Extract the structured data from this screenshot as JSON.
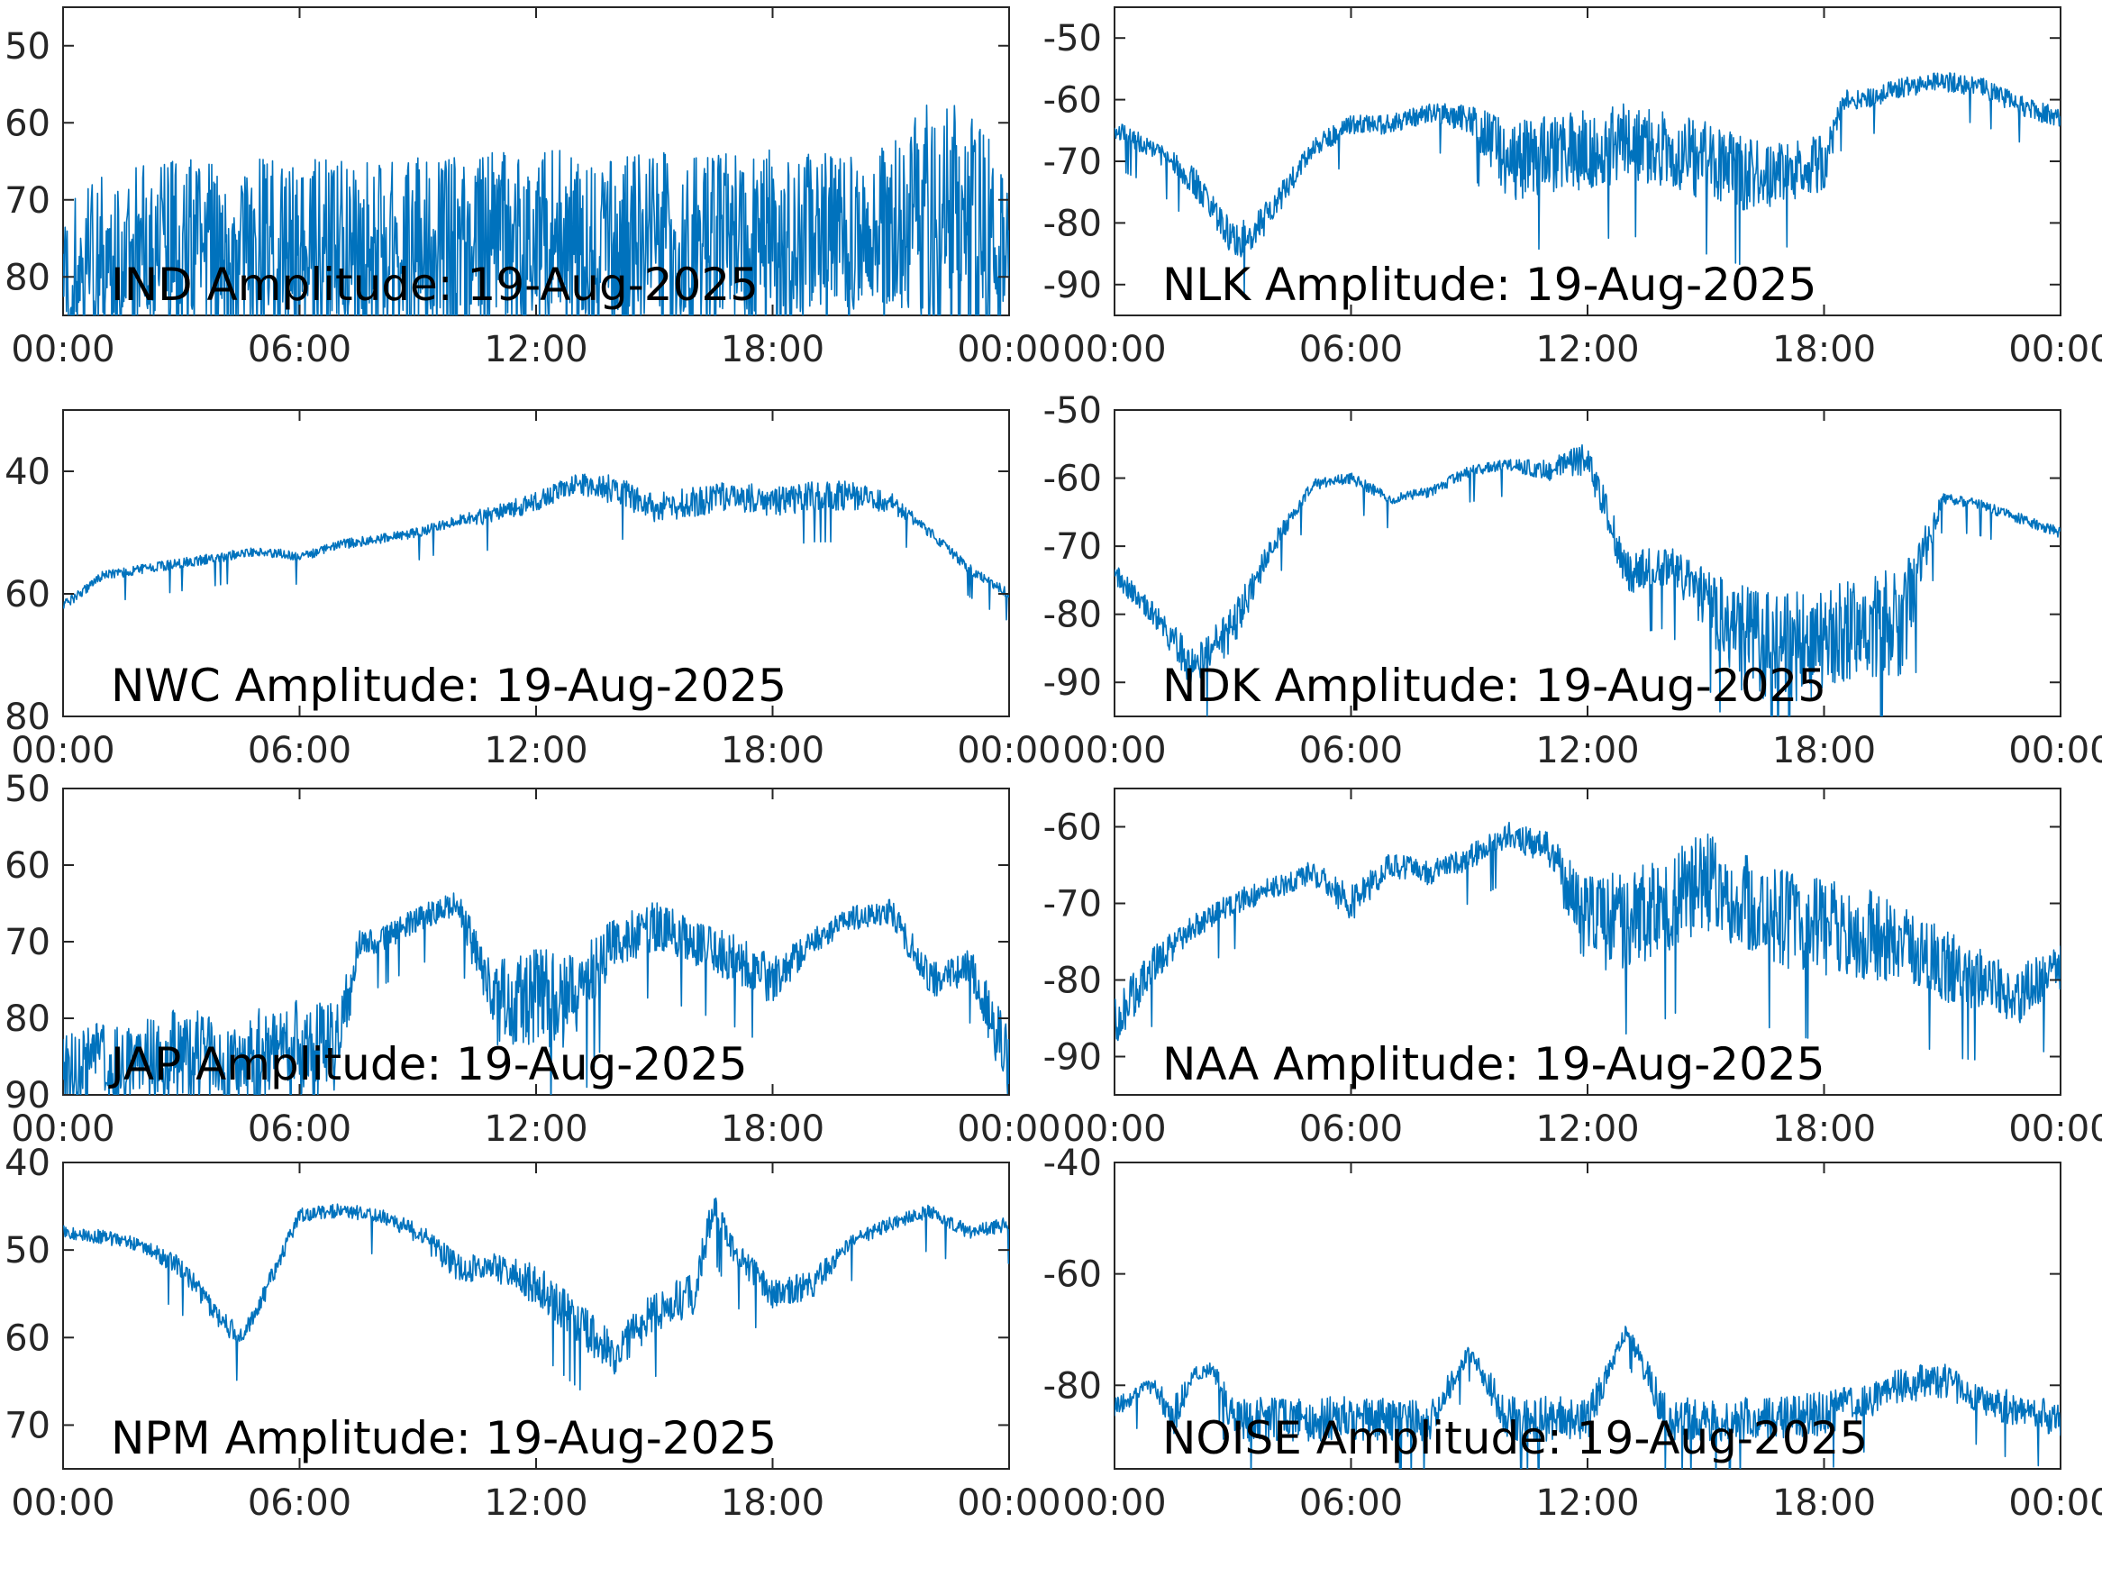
{
  "chart_data": [
    {
      "type": "line",
      "title": "",
      "annotation": "IND Amplitude: 19-Aug-2025",
      "xlabel": "",
      "ylabel": "",
      "xlim": [
        "00:00",
        "24:00"
      ],
      "ylim": [
        -85,
        -45
      ],
      "yticks": [
        -80,
        -70,
        -60,
        -50
      ],
      "ytick_labels": [
        "80",
        "70",
        "60",
        "50"
      ],
      "xtick_labels": [
        "00:00",
        "06:00",
        "12:00",
        "18:00",
        "00:00"
      ],
      "color": "#0072BD",
      "series": [
        {
          "x": [
            "00:00",
            "01:00",
            "02:00",
            "03:00",
            "04:00",
            "05:00",
            "06:00",
            "07:00",
            "08:00",
            "09:00",
            "10:00",
            "11:00",
            "12:00",
            "13:00",
            "14:00",
            "15:00",
            "16:00",
            "17:00",
            "18:00",
            "19:00",
            "20:00",
            "21:00",
            "22:00",
            "23:00",
            "24:00"
          ],
          "y": [
            -80,
            -78,
            -77,
            -76.5,
            -76.5,
            -76.5,
            -76.5,
            -76.5,
            -76.5,
            -76.5,
            -76,
            -75.5,
            -75.5,
            -75.5,
            -75.5,
            -75.5,
            -76,
            -76,
            -75.5,
            -75,
            -74,
            -73,
            -72,
            -74,
            -76
          ],
          "spread": [
            12,
            14,
            15,
            15,
            15,
            15,
            15,
            15,
            15,
            15,
            15,
            15,
            15,
            15,
            15,
            15,
            15,
            15,
            15,
            14,
            13,
            13,
            20,
            20,
            14
          ]
        }
      ]
    },
    {
      "type": "line",
      "title": "",
      "annotation": "NLK Amplitude: 19-Aug-2025",
      "xlabel": "",
      "ylabel": "",
      "xlim": [
        "00:00",
        "24:00"
      ],
      "ylim": [
        -95,
        -45
      ],
      "yticks": [
        -90,
        -80,
        -70,
        -60,
        -50
      ],
      "ytick_labels": [
        "-90",
        "-80",
        "-70",
        "-60",
        "-50"
      ],
      "xtick_labels": [
        "00:00",
        "06:00",
        "12:00",
        "18:00",
        "00:00"
      ],
      "color": "#0072BD",
      "series": [
        {
          "x": [
            "00:00",
            "01:00",
            "02:00",
            "02:30",
            "03:00",
            "03:30",
            "04:00",
            "05:00",
            "06:00",
            "07:00",
            "08:00",
            "09:00",
            "10:00",
            "11:00",
            "12:00",
            "13:00",
            "14:00",
            "15:00",
            "16:00",
            "17:00",
            "18:00",
            "18:30",
            "19:00",
            "20:00",
            "21:00",
            "22:00",
            "23:00",
            "24:00"
          ],
          "y": [
            -65,
            -68,
            -73,
            -78,
            -83,
            -82,
            -78,
            -68,
            -64,
            -64,
            -62,
            -63,
            -70,
            -69,
            -68,
            -67,
            -68,
            -70,
            -72,
            -72,
            -70,
            -60,
            -60,
            -58,
            -57,
            -58,
            -61,
            -63
          ],
          "spread": [
            2,
            2,
            3,
            3,
            4,
            4,
            3,
            2,
            2,
            2,
            2,
            3,
            8,
            8,
            8,
            8,
            8,
            8,
            8,
            6,
            6,
            2,
            2,
            2,
            2,
            2,
            2,
            2
          ]
        }
      ]
    },
    {
      "type": "line",
      "title": "",
      "annotation": "NWC Amplitude: 19-Aug-2025",
      "xlabel": "",
      "ylabel": "",
      "xlim": [
        "00:00",
        "24:00"
      ],
      "ylim": [
        -80,
        -30
      ],
      "yticks": [
        -80,
        -60,
        -40
      ],
      "ytick_labels": [
        "80",
        "60",
        "40"
      ],
      "xtick_labels": [
        "00:00",
        "06:00",
        "12:00",
        "18:00",
        "00:00"
      ],
      "color": "#0072BD",
      "series": [
        {
          "x": [
            "00:00",
            "01:00",
            "02:00",
            "03:00",
            "04:00",
            "05:00",
            "06:00",
            "07:00",
            "08:00",
            "09:00",
            "10:00",
            "11:00",
            "12:00",
            "13:00",
            "14:00",
            "15:00",
            "16:00",
            "17:00",
            "18:00",
            "19:00",
            "20:00",
            "21:00",
            "22:00",
            "23:00",
            "24:00"
          ],
          "y": [
            -62,
            -57,
            -56,
            -55,
            -54,
            -53,
            -54,
            -52,
            -51,
            -50,
            -48,
            -47,
            -45,
            -42,
            -43,
            -46,
            -45,
            -44,
            -45,
            -44,
            -44,
            -45,
            -50,
            -56,
            -60
          ],
          "spread": [
            1,
            1,
            1,
            1,
            1,
            1,
            1,
            1,
            1,
            1,
            1,
            2,
            2,
            2,
            3,
            3,
            3,
            3,
            3,
            3,
            3,
            2,
            1,
            1,
            1
          ]
        }
      ]
    },
    {
      "type": "line",
      "title": "",
      "annotation": "NDK Amplitude: 19-Aug-2025",
      "xlabel": "",
      "ylabel": "",
      "xlim": [
        "00:00",
        "24:00"
      ],
      "ylim": [
        -95,
        -50
      ],
      "yticks": [
        -90,
        -80,
        -70,
        -60,
        -50
      ],
      "ytick_labels": [
        "-90",
        "-80",
        "-70",
        "-60",
        "-50"
      ],
      "xtick_labels": [
        "00:00",
        "06:00",
        "12:00",
        "18:00",
        "00:00"
      ],
      "color": "#0072BD",
      "series": [
        {
          "x": [
            "00:00",
            "01:00",
            "02:00",
            "03:00",
            "04:00",
            "05:00",
            "06:00",
            "07:00",
            "08:00",
            "09:00",
            "10:00",
            "11:00",
            "12:00",
            "13:00",
            "14:00",
            "15:00",
            "16:00",
            "17:00",
            "18:00",
            "19:00",
            "20:00",
            "21:00",
            "22:00",
            "23:00",
            "24:00"
          ],
          "y": [
            -74,
            -80,
            -88,
            -82,
            -70,
            -61,
            -60,
            -63,
            -62,
            -59,
            -58,
            -59,
            -57,
            -74,
            -73,
            -78,
            -84,
            -85,
            -84,
            -82,
            -81,
            -63,
            -64,
            -66,
            -68
          ],
          "spread": [
            2,
            2,
            4,
            4,
            2,
            1,
            1,
            1,
            1,
            1,
            1,
            2,
            3,
            4,
            4,
            6,
            10,
            10,
            10,
            10,
            10,
            1,
            1,
            1,
            1
          ]
        }
      ]
    },
    {
      "type": "line",
      "title": "",
      "annotation": "JAP Amplitude: 19-Aug-2025",
      "xlabel": "",
      "ylabel": "",
      "xlim": [
        "00:00",
        "24:00"
      ],
      "ylim": [
        -90,
        -50
      ],
      "yticks": [
        -90,
        -80,
        -70,
        -60,
        -50
      ],
      "ytick_labels": [
        "90",
        "80",
        "70",
        "60",
        "50"
      ],
      "xtick_labels": [
        "00:00",
        "06:00",
        "12:00",
        "18:00",
        "00:00"
      ],
      "color": "#0072BD",
      "series": [
        {
          "x": [
            "00:00",
            "01:00",
            "02:00",
            "03:00",
            "04:00",
            "05:00",
            "06:00",
            "07:00",
            "07:30",
            "08:00",
            "09:00",
            "10:00",
            "11:00",
            "12:00",
            "13:00",
            "14:00",
            "15:00",
            "16:00",
            "17:00",
            "18:00",
            "19:00",
            "20:00",
            "21:00",
            "22:00",
            "23:00",
            "24:00"
          ],
          "y": [
            -87,
            -86,
            -86,
            -85,
            -85,
            -85,
            -84,
            -84,
            -70,
            -70,
            -67,
            -65,
            -78,
            -77,
            -78,
            -70,
            -68,
            -70,
            -72,
            -75,
            -70,
            -67,
            -66,
            -75,
            -73,
            -86
          ],
          "spread": [
            6,
            7,
            7,
            8,
            8,
            8,
            8,
            8,
            2,
            2,
            2,
            2,
            7,
            8,
            8,
            4,
            4,
            4,
            4,
            4,
            2,
            2,
            2,
            3,
            3,
            6
          ]
        }
      ]
    },
    {
      "type": "line",
      "title": "",
      "annotation": "NAA Amplitude: 19-Aug-2025",
      "xlabel": "",
      "ylabel": "",
      "xlim": [
        "00:00",
        "24:00"
      ],
      "ylim": [
        -95,
        -55
      ],
      "yticks": [
        -90,
        -80,
        -70,
        -60
      ],
      "ytick_labels": [
        "-90",
        "-80",
        "-70",
        "-60"
      ],
      "xtick_labels": [
        "00:00",
        "06:00",
        "12:00",
        "18:00",
        "00:00"
      ],
      "color": "#0072BD",
      "series": [
        {
          "x": [
            "00:00",
            "01:00",
            "02:00",
            "03:00",
            "04:00",
            "05:00",
            "06:00",
            "07:00",
            "08:00",
            "09:00",
            "10:00",
            "11:00",
            "12:00",
            "13:00",
            "14:00",
            "15:00",
            "16:00",
            "17:00",
            "18:00",
            "19:00",
            "20:00",
            "21:00",
            "22:00",
            "23:00",
            "24:00"
          ],
          "y": [
            -85,
            -78,
            -73,
            -70,
            -68,
            -66,
            -70,
            -65,
            -66,
            -64,
            -61,
            -63,
            -73,
            -72,
            -70,
            -67,
            -70,
            -72,
            -73,
            -74,
            -75,
            -78,
            -80,
            -82,
            -78
          ],
          "spread": [
            5,
            3,
            2,
            2,
            2,
            2,
            3,
            2,
            2,
            2,
            2,
            3,
            8,
            8,
            8,
            8,
            8,
            8,
            8,
            8,
            6,
            6,
            5,
            5,
            4
          ]
        }
      ]
    },
    {
      "type": "line",
      "title": "",
      "annotation": "NPM Amplitude: 19-Aug-2025",
      "xlabel": "",
      "ylabel": "",
      "xlim": [
        "00:00",
        "24:00"
      ],
      "ylim": [
        -75,
        -40
      ],
      "yticks": [
        -70,
        -60,
        -50,
        -40
      ],
      "ytick_labels": [
        "70",
        "60",
        "50",
        "40"
      ],
      "xtick_labels": [
        "00:00",
        "06:00",
        "12:00",
        "18:00",
        "00:00"
      ],
      "color": "#0072BD",
      "series": [
        {
          "x": [
            "00:00",
            "01:00",
            "02:00",
            "03:00",
            "04:00",
            "04:30",
            "05:00",
            "06:00",
            "07:00",
            "08:00",
            "09:00",
            "10:00",
            "11:00",
            "12:00",
            "13:00",
            "14:00",
            "15:00",
            "16:00",
            "16:30",
            "17:00",
            "18:00",
            "19:00",
            "20:00",
            "21:00",
            "22:00",
            "23:00",
            "24:00"
          ],
          "y": [
            -48,
            -48.5,
            -49.5,
            -52,
            -58,
            -60,
            -56,
            -46,
            -45.5,
            -46,
            -48,
            -52,
            -52,
            -54,
            -58,
            -62,
            -57,
            -55,
            -45,
            -50,
            -55,
            -54,
            -49,
            -47,
            -45.5,
            -48,
            -47
          ],
          "spread": [
            1,
            1,
            1,
            1.5,
            1.5,
            1.5,
            1.5,
            1,
            1,
            1,
            1.5,
            2,
            2,
            3,
            3,
            3,
            3,
            3,
            2,
            2,
            2,
            2,
            1,
            1,
            1,
            1,
            1
          ]
        }
      ]
    },
    {
      "type": "line",
      "title": "",
      "annotation": "NOISE Amplitude: 19-Aug-2025",
      "xlabel": "",
      "ylabel": "",
      "xlim": [
        "00:00",
        "24:00"
      ],
      "ylim": [
        -95,
        -40
      ],
      "yticks": [
        -80,
        -60,
        -40
      ],
      "ytick_labels": [
        "-80",
        "-60",
        "-40"
      ],
      "xtick_labels": [
        "00:00",
        "06:00",
        "12:00",
        "18:00",
        "00:00"
      ],
      "color": "#0072BD",
      "series": [
        {
          "x": [
            "00:00",
            "01:00",
            "01:30",
            "02:00",
            "02:30",
            "03:00",
            "04:00",
            "05:00",
            "06:00",
            "07:00",
            "08:00",
            "09:00",
            "10:00",
            "11:00",
            "12:00",
            "13:00",
            "14:00",
            "15:00",
            "16:00",
            "17:00",
            "18:00",
            "19:00",
            "20:00",
            "21:00",
            "22:00",
            "23:00",
            "24:00"
          ],
          "y": [
            -84,
            -80,
            -86,
            -78,
            -77,
            -86,
            -86,
            -86,
            -86,
            -86,
            -86,
            -74,
            -86,
            -86,
            -86,
            -70,
            -86,
            -86,
            -86,
            -86,
            -85,
            -83,
            -80,
            -79,
            -82,
            -85,
            -86
          ],
          "spread": [
            2,
            2,
            5,
            1.5,
            1.5,
            5,
            5,
            5,
            5,
            5,
            5,
            1.5,
            5,
            5,
            5,
            1.5,
            5,
            5,
            5,
            5,
            5,
            4,
            4,
            4,
            4,
            4,
            4
          ]
        }
      ]
    }
  ]
}
